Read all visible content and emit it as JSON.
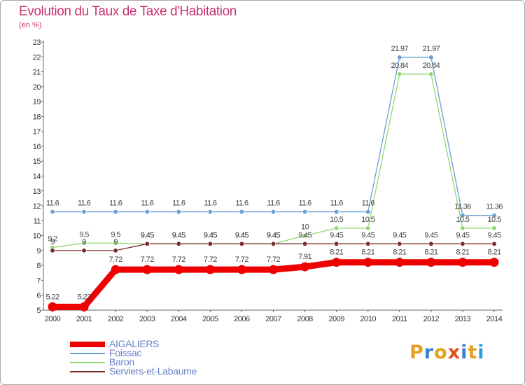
{
  "title": "Evolution du Taux de Taxe d'Habitation",
  "subtitle": "(en %)",
  "logo_text": "Proxiti",
  "logo_colors": [
    "#e8a020",
    "#3a7fd0",
    "#e8a020",
    "#e05020",
    "#3a7fd0",
    "#e8a020",
    "#2a9fd8"
  ],
  "chart_data": {
    "type": "line",
    "title": "Evolution du Taux de Taxe d'Habitation",
    "ylabel": "(en %)",
    "xlabel": "",
    "ylim": [
      5,
      23
    ],
    "yticks": [
      5,
      6,
      7,
      8,
      9,
      10,
      11,
      12,
      13,
      14,
      15,
      16,
      17,
      18,
      19,
      20,
      21,
      22,
      23
    ],
    "grid": false,
    "legend_position": "bottom-left",
    "x": [
      "2000",
      "2001",
      "2002",
      "2003",
      "2004",
      "2005",
      "2006",
      "2007",
      "2008",
      "2009",
      "2010",
      "2011",
      "2012",
      "2013",
      "2014"
    ],
    "series": [
      {
        "name": "Foissac",
        "color": "#6a9fd4",
        "values": [
          11.6,
          11.6,
          11.6,
          11.6,
          11.6,
          11.6,
          11.6,
          11.6,
          11.6,
          11.6,
          11.6,
          21.97,
          21.97,
          11.36,
          11.36
        ],
        "labels": [
          "11.6",
          "11.6",
          "11.6",
          "11.6",
          "11.6",
          "11.6",
          "11.6",
          "11.6",
          "11.6",
          "11.6",
          "11.6",
          "21.97",
          "21.97",
          "11.36",
          "11.36"
        ]
      },
      {
        "name": "Baron",
        "color": "#90d870",
        "values": [
          9.2,
          9.5,
          9.5,
          9.45,
          9.45,
          9.45,
          9.45,
          9.45,
          10,
          10.5,
          10.5,
          20.84,
          20.84,
          10.5,
          10.5
        ],
        "labels": [
          "9.2",
          "9.5",
          "9.5",
          "9.45",
          "9.45",
          "9.45",
          "9.45",
          "9.45",
          "10",
          "10.5",
          "10.5",
          "20.84",
          "20.84",
          "10.5",
          "10.5"
        ]
      },
      {
        "name": "Serviers-et-Labaume",
        "color": "#7a2a2a",
        "values": [
          9,
          9,
          9,
          9.45,
          9.45,
          9.45,
          9.45,
          9.45,
          9.45,
          9.45,
          9.45,
          9.45,
          9.45,
          9.45,
          9.45
        ],
        "labels": [
          "9",
          "9",
          "9",
          "9.45",
          "9.45",
          "9.45",
          "9.45",
          "9.45",
          "9.45",
          "9.45",
          "9.45",
          "9.45",
          "9.45",
          "9.45",
          "9.45"
        ]
      },
      {
        "name": "AIGALIERS",
        "color": "#ee0000",
        "values": [
          5.22,
          5.22,
          7.72,
          7.72,
          7.72,
          7.72,
          7.72,
          7.72,
          7.91,
          8.21,
          8.21,
          8.21,
          8.21,
          8.21,
          8.21
        ],
        "labels": [
          "5.22",
          "5.22",
          "7.72",
          "7.72",
          "7.72",
          "7.72",
          "7.72",
          "7.72",
          "7.91",
          "8.21",
          "8.21",
          "8.21",
          "8.21",
          "8.21",
          "8.21"
        ]
      }
    ],
    "legend": [
      "AIGALIERS",
      "Foissac",
      "Baron",
      "Serviers-et-Labaume"
    ]
  }
}
